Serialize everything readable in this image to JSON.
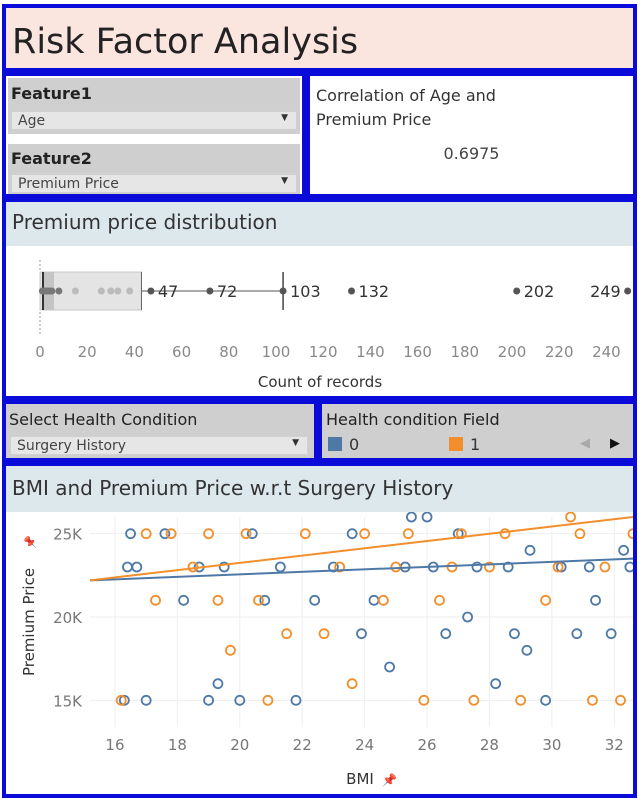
{
  "title": "Risk Factor Analysis",
  "feature1": {
    "label": "Feature1",
    "value": "Age"
  },
  "feature2": {
    "label": "Feature2",
    "value": "Premium Price"
  },
  "correlation": {
    "title": "Correlation of  Age and Premium Price",
    "value": "0.6975"
  },
  "distribution": {
    "heading": "Premium price distribution",
    "xlabel": "Count of records",
    "ticks": [
      "0",
      "20",
      "40",
      "60",
      "80",
      "100",
      "120",
      "140",
      "160",
      "180",
      "200",
      "220",
      "240"
    ]
  },
  "health_filter": {
    "label": "Select Health Condition",
    "value": "Surgery History"
  },
  "legend": {
    "title": "Health condition Field",
    "items": [
      {
        "label": "0",
        "color": "#4e79a7"
      },
      {
        "label": "1",
        "color": "#f28e2b"
      }
    ]
  },
  "scatter": {
    "heading": "BMI and Premium Price w.r.t Surgery History",
    "xlabel": "BMI",
    "ylabel": "Premium Price",
    "xticks": [
      "16",
      "18",
      "20",
      "22",
      "24",
      "26",
      "28",
      "30",
      "32"
    ],
    "yticks": [
      "15K",
      "20K",
      "25K"
    ]
  },
  "chart_data": [
    {
      "type": "box",
      "title": "Premium price distribution",
      "xlabel": "Count of records",
      "xlim": [
        0,
        250
      ],
      "whisker": [
        0,
        103
      ],
      "box": [
        0,
        43
      ],
      "outliers": [
        47,
        72,
        103,
        132,
        202,
        249
      ],
      "other_points": [
        1,
        2,
        3,
        4,
        5,
        8,
        15,
        26,
        30,
        33,
        38
      ],
      "labeled_values": [
        47,
        72,
        103,
        132,
        202,
        249
      ]
    },
    {
      "type": "scatter",
      "title": "BMI and Premium Price w.r.t Surgery History",
      "xlabel": "BMI",
      "ylabel": "Premium Price",
      "xlim": [
        15.2,
        32.6
      ],
      "ylim": [
        14000,
        26000
      ],
      "y_tick_labels": [
        "15K",
        "20K",
        "25K"
      ],
      "series": [
        {
          "name": "0",
          "color": "#4e79a7",
          "trend": [
            [
              15.2,
              22200
            ],
            [
              32.6,
              23500
            ]
          ],
          "points": [
            [
              16.3,
              15000
            ],
            [
              16.4,
              23000
            ],
            [
              16.5,
              25000
            ],
            [
              16.7,
              23000
            ],
            [
              17.0,
              15000
            ],
            [
              17.6,
              25000
            ],
            [
              18.2,
              21000
            ],
            [
              18.7,
              23000
            ],
            [
              19.0,
              15000
            ],
            [
              19.3,
              16000
            ],
            [
              19.5,
              23000
            ],
            [
              20.0,
              15000
            ],
            [
              20.4,
              25000
            ],
            [
              20.8,
              21000
            ],
            [
              21.3,
              23000
            ],
            [
              21.8,
              15000
            ],
            [
              22.4,
              21000
            ],
            [
              23.0,
              23000
            ],
            [
              23.6,
              25000
            ],
            [
              23.9,
              19000
            ],
            [
              24.3,
              21000
            ],
            [
              24.8,
              17000
            ],
            [
              25.3,
              23000
            ],
            [
              25.5,
              26000
            ],
            [
              26.0,
              26000
            ],
            [
              26.2,
              23000
            ],
            [
              26.6,
              19000
            ],
            [
              27.0,
              25000
            ],
            [
              27.3,
              20000
            ],
            [
              27.6,
              23000
            ],
            [
              28.2,
              16000
            ],
            [
              28.6,
              23000
            ],
            [
              28.8,
              19000
            ],
            [
              29.2,
              18000
            ],
            [
              29.3,
              24000
            ],
            [
              29.8,
              15000
            ],
            [
              30.3,
              23000
            ],
            [
              30.8,
              19000
            ],
            [
              31.2,
              23000
            ],
            [
              31.4,
              21000
            ],
            [
              31.9,
              19000
            ],
            [
              32.3,
              24000
            ],
            [
              32.5,
              23000
            ]
          ]
        },
        {
          "name": "1",
          "color": "#f28e2b",
          "trend": [
            [
              15.2,
              22200
            ],
            [
              32.6,
              26000
            ]
          ],
          "points": [
            [
              16.2,
              15000
            ],
            [
              17.0,
              25000
            ],
            [
              17.3,
              21000
            ],
            [
              17.8,
              25000
            ],
            [
              18.5,
              23000
            ],
            [
              19.0,
              25000
            ],
            [
              19.3,
              21000
            ],
            [
              19.7,
              18000
            ],
            [
              20.2,
              25000
            ],
            [
              20.6,
              21000
            ],
            [
              20.9,
              15000
            ],
            [
              21.5,
              19000
            ],
            [
              22.1,
              25000
            ],
            [
              22.7,
              19000
            ],
            [
              23.2,
              23000
            ],
            [
              23.6,
              16000
            ],
            [
              24.0,
              25000
            ],
            [
              24.6,
              21000
            ],
            [
              25.0,
              23000
            ],
            [
              25.4,
              25000
            ],
            [
              25.9,
              15000
            ],
            [
              26.4,
              21000
            ],
            [
              26.8,
              23000
            ],
            [
              27.1,
              25000
            ],
            [
              27.5,
              15000
            ],
            [
              28.0,
              23000
            ],
            [
              28.5,
              25000
            ],
            [
              29.0,
              15000
            ],
            [
              29.8,
              21000
            ],
            [
              30.2,
              23000
            ],
            [
              30.6,
              26000
            ],
            [
              30.9,
              25000
            ],
            [
              31.3,
              15000
            ],
            [
              31.7,
              23000
            ],
            [
              32.2,
              15000
            ],
            [
              32.6,
              25000
            ]
          ]
        }
      ]
    }
  ]
}
